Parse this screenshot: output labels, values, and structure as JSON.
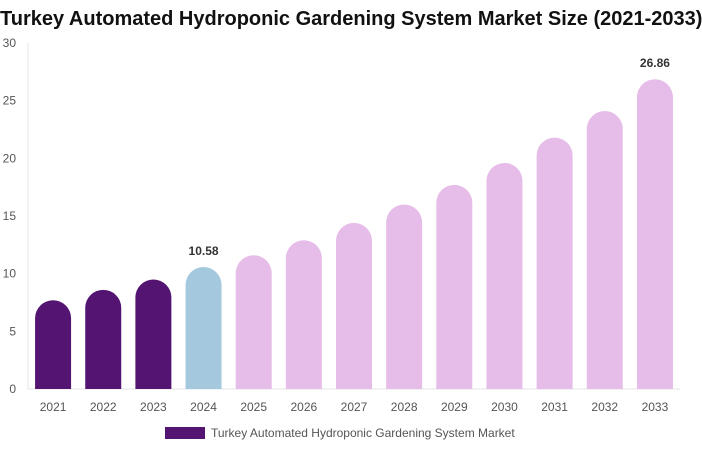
{
  "chart_data": {
    "type": "bar",
    "title": "Turkey Automated Hydroponic Gardening System Market Size (2021-2033)",
    "categories": [
      "2021",
      "2022",
      "2023",
      "2024",
      "2025",
      "2026",
      "2027",
      "2028",
      "2029",
      "2030",
      "2031",
      "2032",
      "2033"
    ],
    "series": [
      {
        "name": "Turkey Automated Hydroponic Gardening System Market",
        "values": [
          7.7,
          8.6,
          9.5,
          10.58,
          11.6,
          12.9,
          14.4,
          16.0,
          17.7,
          19.6,
          21.8,
          24.1,
          26.86
        ]
      }
    ],
    "data_labels": {
      "2024": "10.58",
      "2033": "26.86"
    },
    "ylim": [
      0,
      30
    ],
    "yticks": [
      0,
      5,
      10,
      15,
      20,
      25,
      30
    ],
    "grid": false,
    "legend": "bottom",
    "colors": {
      "historical": "#541472",
      "current": "#a4c9de",
      "forecast": "#e6bce8"
    }
  }
}
